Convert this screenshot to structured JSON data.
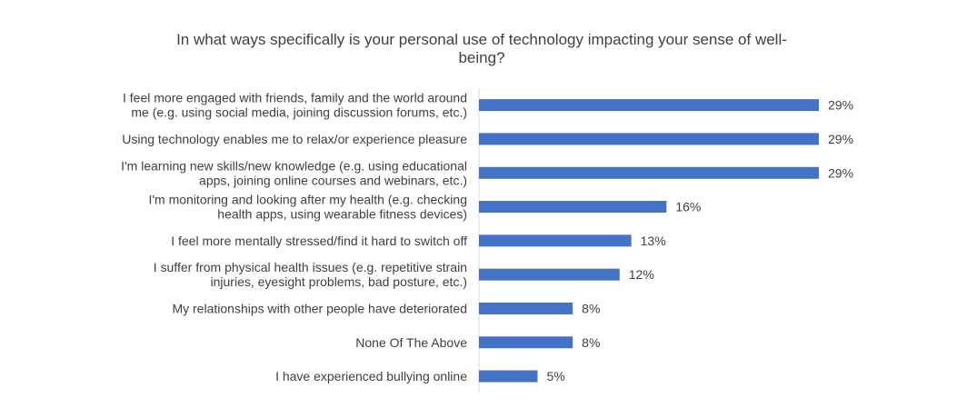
{
  "chart_data": {
    "type": "bar",
    "orientation": "horizontal",
    "title": "In what ways specifically is your personal use of technology impacting your sense of well-being?",
    "categories": [
      [
        "I feel more engaged with friends, family and the world around",
        "me (e.g. using social media, joining discussion forums, etc.)"
      ],
      [
        "Using technology enables me to relax/or experience pleasure"
      ],
      [
        "I'm learning new skills/new knowledge (e.g. using educational",
        "apps, joining online courses and webinars, etc.)"
      ],
      [
        "I'm monitoring and looking after my health (e.g. checking",
        "health apps, using wearable fitness devices)"
      ],
      [
        "I feel more mentally stressed/find it hard to switch off"
      ],
      [
        "I suffer from physical health issues (e.g. repetitive strain",
        "injuries, eyesight problems, bad posture, etc.)"
      ],
      [
        "My relationships with other people have deteriorated"
      ],
      [
        "None Of The Above"
      ],
      [
        "I have experienced bullying online"
      ]
    ],
    "values": [
      29,
      29,
      29,
      16,
      13,
      12,
      8,
      8,
      5
    ],
    "value_labels": [
      "29%",
      "29%",
      "29%",
      "16%",
      "13%",
      "12%",
      "8%",
      "8%",
      "5%"
    ],
    "xlim": [
      0,
      29
    ],
    "xlabel": "",
    "ylabel": "",
    "legend": "none",
    "grid": false,
    "bar_color": "#4472C4"
  }
}
